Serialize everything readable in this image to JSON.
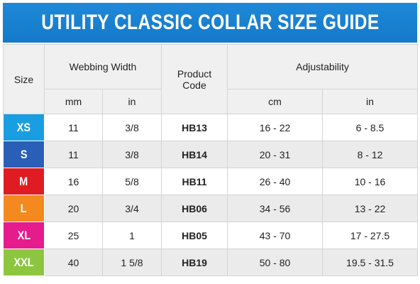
{
  "title": "UTILITY CLASSIC COLLAR SIZE GUIDE",
  "headers": {
    "size": "Size",
    "webbing_width": "Webbing Width",
    "product_code": "Product Code",
    "adjustability": "Adjustability",
    "mm": "mm",
    "in1": "in",
    "cm": "cm",
    "in2": "in"
  },
  "rows": [
    {
      "size": "XS",
      "size_color": "#1a9ee2",
      "mm": "11",
      "in": "3/8",
      "code": "HB13",
      "cm": "16 - 22",
      "in2": "6 - 8.5"
    },
    {
      "size": "S",
      "size_color": "#2a5fb8",
      "mm": "11",
      "in": "3/8",
      "code": "HB14",
      "cm": "20 - 31",
      "in2": "8 - 12"
    },
    {
      "size": "M",
      "size_color": "#e11b22",
      "mm": "16",
      "in": "5/8",
      "code": "HB11",
      "cm": "26 - 40",
      "in2": "10 - 16"
    },
    {
      "size": "L",
      "size_color": "#f4891f",
      "mm": "20",
      "in": "3/4",
      "code": "HB06",
      "cm": "34 - 56",
      "in2": "13 - 22"
    },
    {
      "size": "XL",
      "size_color": "#e61b8c",
      "mm": "25",
      "in": "1",
      "code": "HB05",
      "cm": "43 - 70",
      "in2": "17 - 27.5"
    },
    {
      "size": "XXL",
      "size_color": "#8cc63f",
      "mm": "40",
      "in": "1 5/8",
      "code": "HB19",
      "cm": "50 - 80",
      "in2": "19.5 - 31.5"
    }
  ],
  "colors": {
    "title_bar": "#1479c9",
    "header_bg": "#f0f0f0",
    "row_alt_bg": "#ebebeb"
  }
}
